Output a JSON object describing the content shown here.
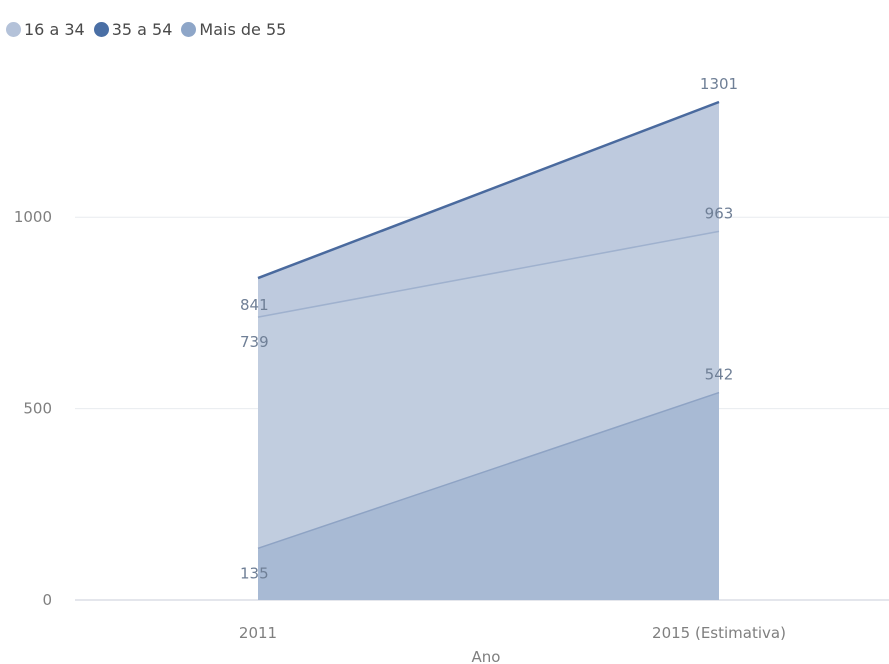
{
  "chart_data": {
    "type": "area",
    "xlabel": "Ano",
    "ylabel": "",
    "categories": [
      "2011",
      "2015 (Estimativa)"
    ],
    "ylim": [
      0,
      1301
    ],
    "yticks": [
      0,
      500,
      1000
    ],
    "grid": true,
    "legend_position": "top-left",
    "series": [
      {
        "name": "16 a 34",
        "values": [
          739,
          963
        ],
        "color": "#b4c2d9"
      },
      {
        "name": "35 a 54",
        "values": [
          841,
          1301
        ],
        "color": "#4a6fa5"
      },
      {
        "name": "Mais de 55",
        "values": [
          135,
          542
        ],
        "color": "#8ea6c8"
      }
    ]
  }
}
